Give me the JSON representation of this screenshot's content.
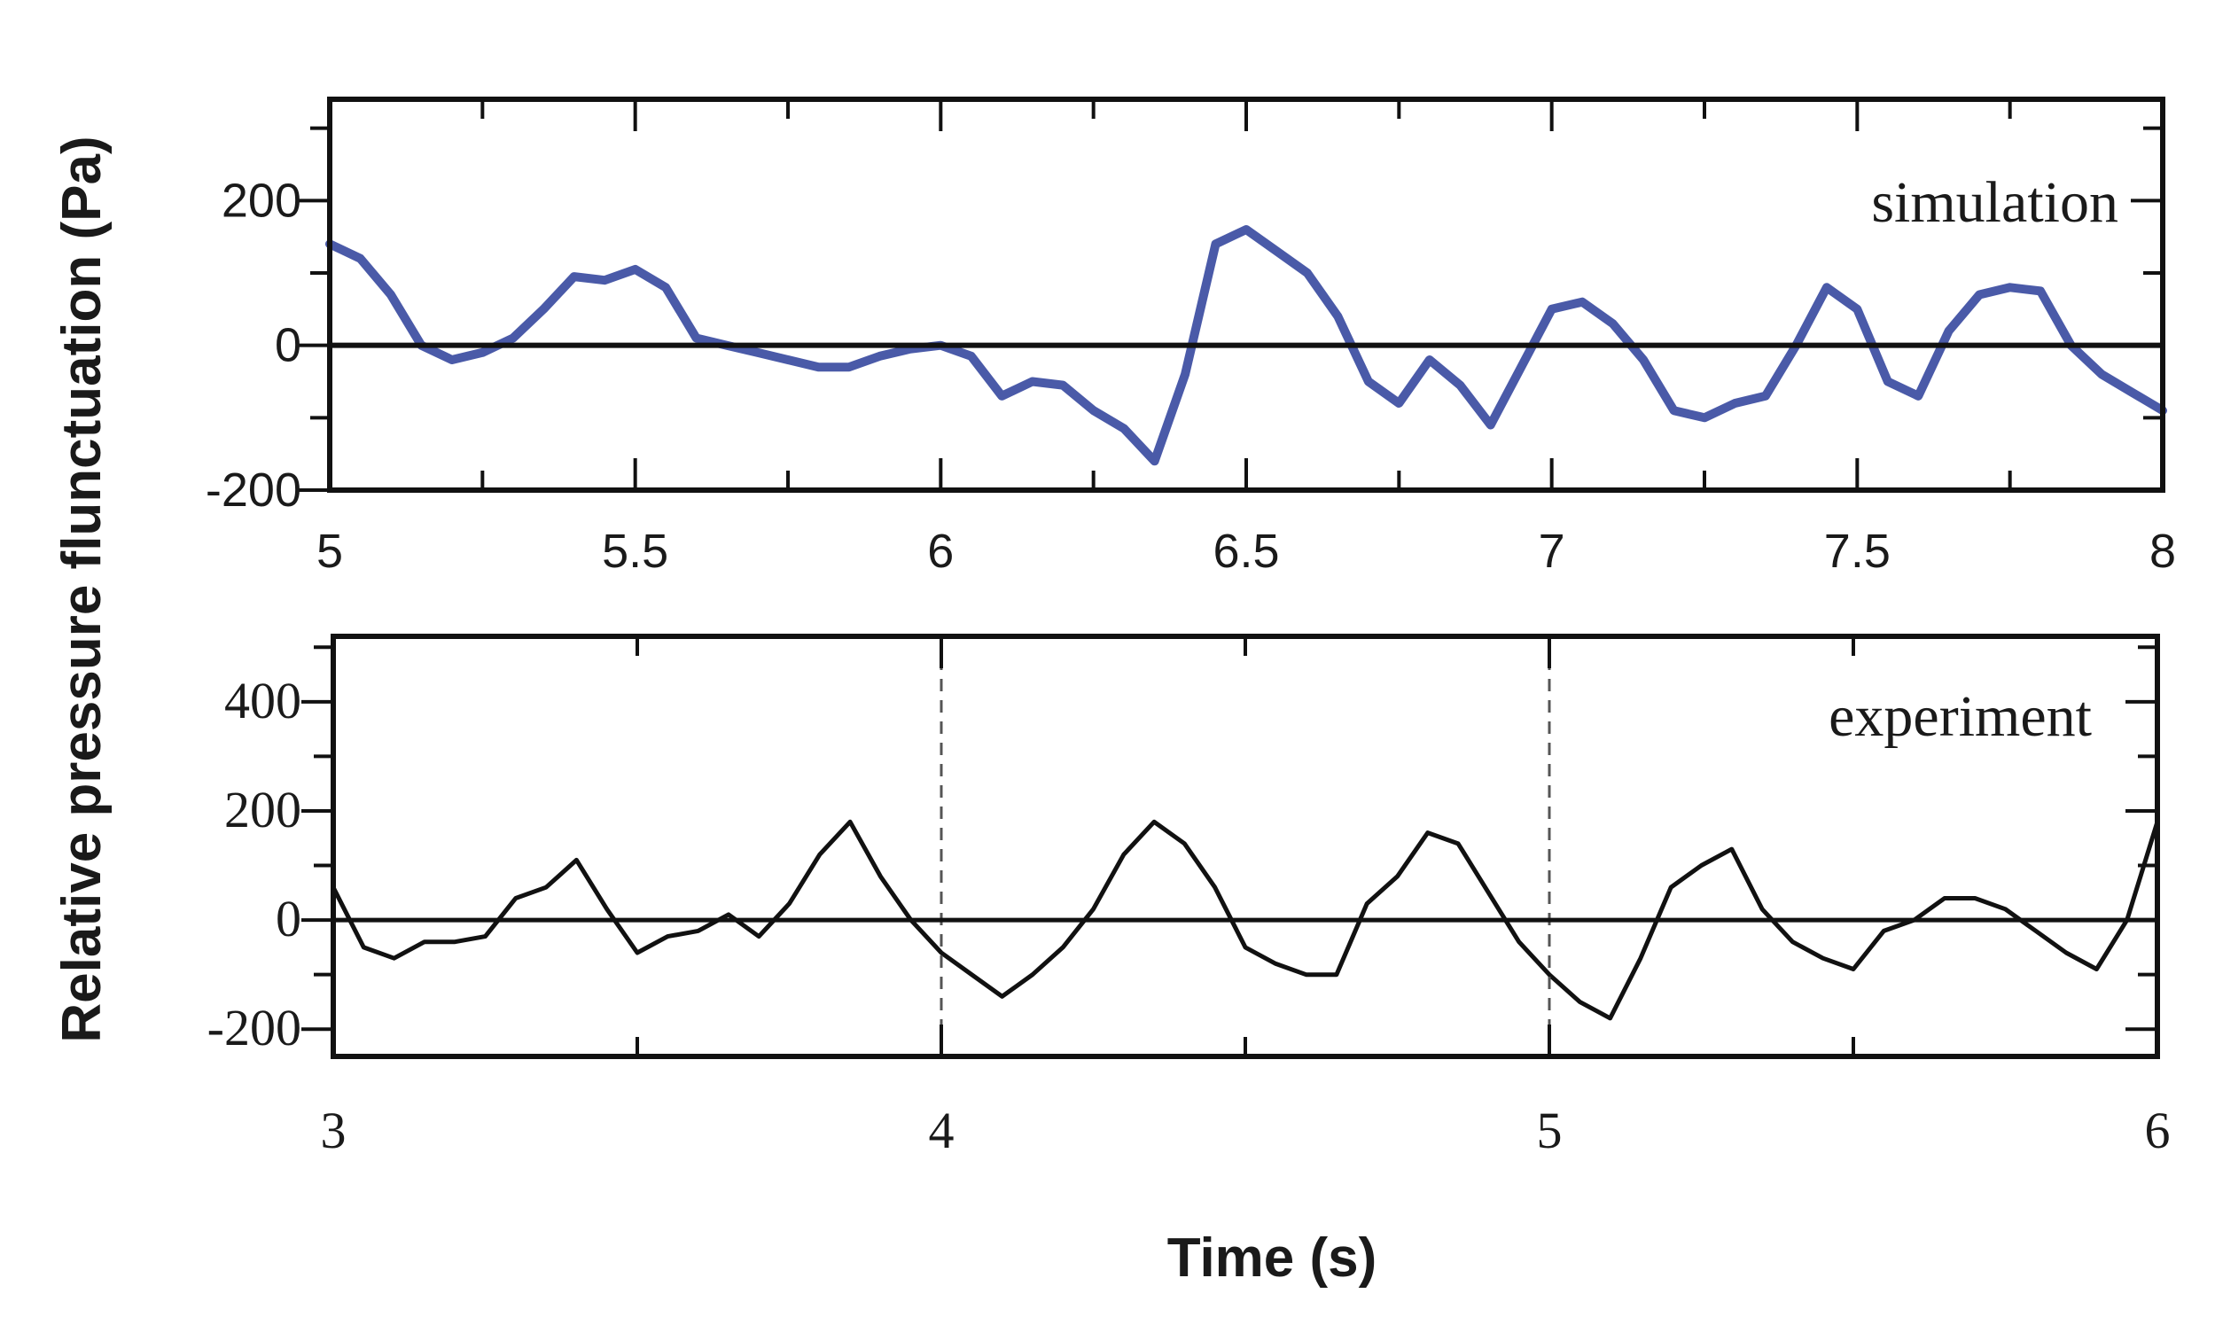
{
  "figure": {
    "ylabel": "Relative pressure flunctuation (Pa)",
    "xlabel": "Time (s)"
  },
  "chart_data": [
    {
      "type": "line",
      "panel": "top",
      "annotation": "simulation",
      "xlim": [
        5,
        8
      ],
      "ylim": [
        -200,
        340
      ],
      "xticks": [
        5,
        5.5,
        6,
        6.5,
        7,
        7.5,
        8
      ],
      "xtick_labels": [
        "5",
        "5.5",
        "6",
        "6.5",
        "7",
        "7.5",
        "8"
      ],
      "yticks": [
        -200,
        0,
        200
      ],
      "ytick_labels": [
        "-200",
        "0",
        "200"
      ],
      "zero_line": true,
      "grid": false,
      "color": "#4a5aa8",
      "series": [
        {
          "x": [
            5.0,
            5.05,
            5.1,
            5.15,
            5.2,
            5.25,
            5.3,
            5.35,
            5.4,
            5.45,
            5.5,
            5.55,
            5.6,
            5.65,
            5.7,
            5.75,
            5.8,
            5.85,
            5.9,
            5.95,
            6.0,
            6.05,
            6.1,
            6.15,
            6.2,
            6.25,
            6.3,
            6.35,
            6.4,
            6.45,
            6.5,
            6.55,
            6.6,
            6.65,
            6.7,
            6.75,
            6.8,
            6.85,
            6.9,
            6.95,
            7.0,
            7.05,
            7.1,
            7.15,
            7.2,
            7.25,
            7.3,
            7.35,
            7.4,
            7.45,
            7.5,
            7.55,
            7.6,
            7.65,
            7.7,
            7.75,
            7.8,
            7.85,
            7.9,
            7.95,
            8.0
          ],
          "y": [
            140,
            120,
            70,
            0,
            -20,
            -10,
            10,
            50,
            95,
            90,
            105,
            80,
            10,
            0,
            -10,
            -20,
            -30,
            -30,
            -15,
            -5,
            0,
            -15,
            -70,
            -50,
            -55,
            -90,
            -115,
            -160,
            -40,
            140,
            160,
            130,
            100,
            40,
            -50,
            -80,
            -20,
            -55,
            -110,
            -30,
            50,
            60,
            30,
            -20,
            -90,
            -100,
            -80,
            -70,
            0,
            80,
            50,
            -50,
            -70,
            20,
            70,
            80,
            75,
            0,
            -40,
            -65,
            -90
          ]
        }
      ]
    },
    {
      "type": "line",
      "panel": "bottom",
      "annotation": "experiment",
      "xlim": [
        3,
        6
      ],
      "ylim": [
        -250,
        520
      ],
      "xticks": [
        3,
        4,
        5,
        6
      ],
      "xtick_labels": [
        "3",
        "4",
        "5",
        "6"
      ],
      "yticks": [
        -200,
        0,
        200,
        400
      ],
      "ytick_labels": [
        "-200",
        "0",
        "200",
        "400"
      ],
      "zero_line": true,
      "dashed_vlines": [
        4,
        5
      ],
      "grid": false,
      "color": "#111111",
      "series": [
        {
          "x": [
            3.0,
            3.05,
            3.1,
            3.15,
            3.2,
            3.25,
            3.3,
            3.35,
            3.4,
            3.45,
            3.5,
            3.55,
            3.6,
            3.65,
            3.7,
            3.75,
            3.8,
            3.85,
            3.9,
            3.95,
            4.0,
            4.05,
            4.1,
            4.15,
            4.2,
            4.25,
            4.3,
            4.35,
            4.4,
            4.45,
            4.5,
            4.55,
            4.6,
            4.65,
            4.7,
            4.75,
            4.8,
            4.85,
            4.9,
            4.95,
            5.0,
            5.05,
            5.1,
            5.15,
            5.2,
            5.25,
            5.3,
            5.35,
            5.4,
            5.45,
            5.5,
            5.55,
            5.6,
            5.65,
            5.7,
            5.75,
            5.8,
            5.85,
            5.9,
            5.95,
            6.0
          ],
          "y": [
            60,
            -50,
            -70,
            -40,
            -40,
            -30,
            40,
            60,
            110,
            20,
            -60,
            -30,
            -20,
            10,
            -30,
            30,
            120,
            180,
            80,
            0,
            -60,
            -100,
            -140,
            -100,
            -50,
            20,
            120,
            180,
            140,
            60,
            -50,
            -80,
            -100,
            -100,
            30,
            80,
            160,
            140,
            50,
            -40,
            -100,
            -150,
            -180,
            -70,
            60,
            100,
            130,
            20,
            -40,
            -70,
            -90,
            -20,
            0,
            40,
            40,
            20,
            -20,
            -60,
            -90,
            0,
            180
          ]
        }
      ]
    }
  ]
}
